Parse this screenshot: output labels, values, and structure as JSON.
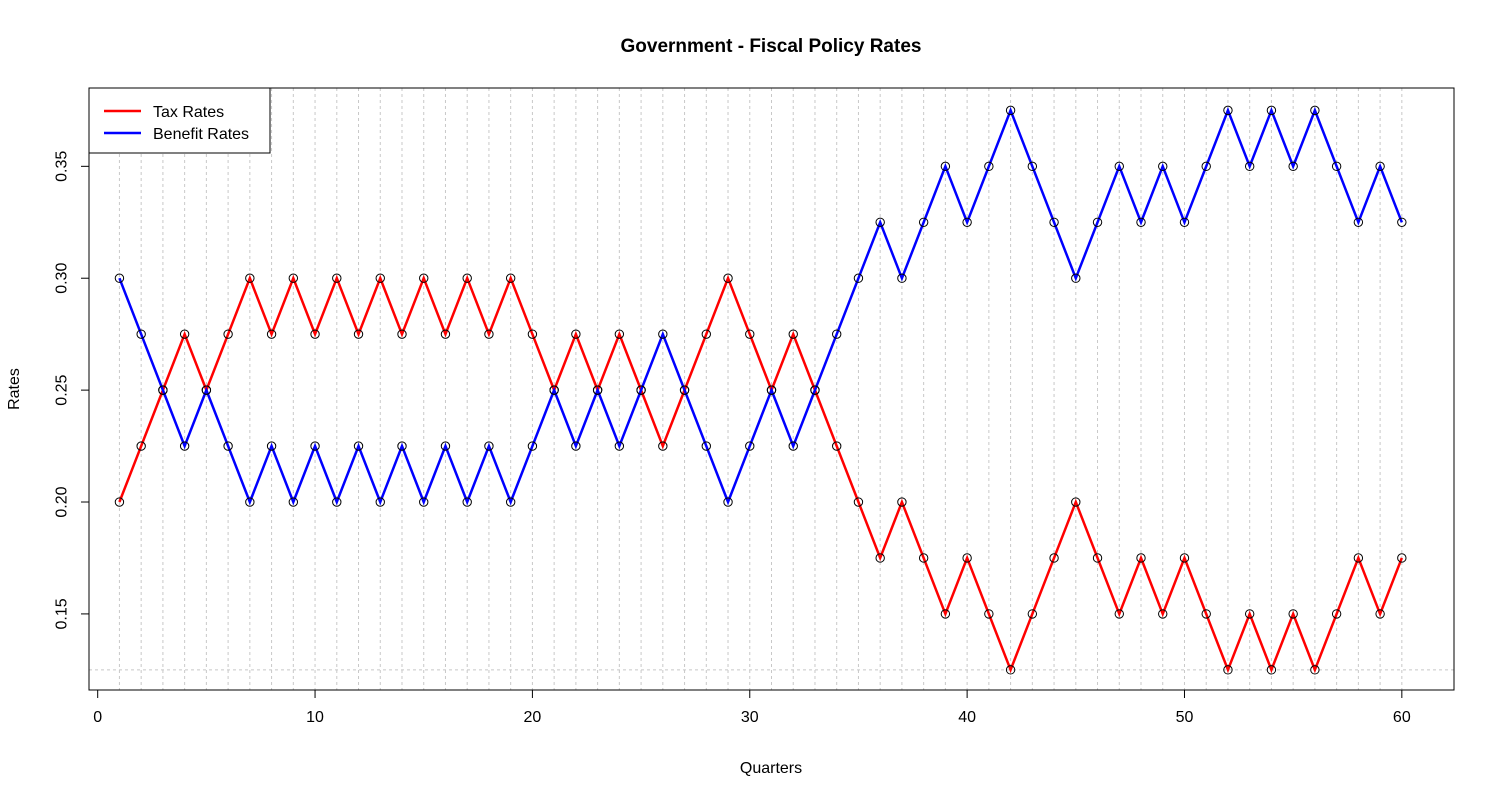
{
  "chart_data": {
    "type": "line",
    "title": "Government - Fiscal Policy Rates",
    "xlabel": "Quarters",
    "ylabel": "Rates",
    "xlim": [
      -0.4,
      62.4
    ],
    "ylim": [
      0.116,
      0.385
    ],
    "x_ticks": [
      0,
      10,
      20,
      30,
      40,
      50,
      60
    ],
    "y_ticks": [
      0.15,
      0.2,
      0.25,
      0.3,
      0.35
    ],
    "y_tick_labels": [
      "0.15",
      "0.20",
      "0.25",
      "0.30",
      "0.35"
    ],
    "grid": {
      "vertical_at_each_quarter": true,
      "horizontal_at": [
        0.125
      ],
      "style": "dotted",
      "color": "#c8c8c8"
    },
    "legend_position": "top-left",
    "marker": "open-circle",
    "x": [
      1,
      2,
      3,
      4,
      5,
      6,
      7,
      8,
      9,
      10,
      11,
      12,
      13,
      14,
      15,
      16,
      17,
      18,
      19,
      20,
      21,
      22,
      23,
      24,
      25,
      26,
      27,
      28,
      29,
      30,
      31,
      32,
      33,
      34,
      35,
      36,
      37,
      38,
      39,
      40,
      41,
      42,
      43,
      44,
      45,
      46,
      47,
      48,
      49,
      50,
      51,
      52,
      53,
      54,
      55,
      56,
      57,
      58,
      59,
      60
    ],
    "series": [
      {
        "name": "Tax Rates",
        "color": "#ff0000",
        "values": [
          0.2,
          0.225,
          0.25,
          0.275,
          0.25,
          0.275,
          0.3,
          0.275,
          0.3,
          0.275,
          0.3,
          0.275,
          0.3,
          0.275,
          0.3,
          0.275,
          0.3,
          0.275,
          0.3,
          0.275,
          0.25,
          0.275,
          0.25,
          0.275,
          0.25,
          0.225,
          0.25,
          0.275,
          0.3,
          0.275,
          0.25,
          0.275,
          0.25,
          0.225,
          0.2,
          0.175,
          0.2,
          0.175,
          0.15,
          0.175,
          0.15,
          0.125,
          0.15,
          0.175,
          0.2,
          0.175,
          0.15,
          0.175,
          0.15,
          0.175,
          0.15,
          0.125,
          0.15,
          0.125,
          0.15,
          0.125,
          0.15,
          0.175,
          0.15,
          0.175
        ]
      },
      {
        "name": "Benefit Rates",
        "color": "#0000ff",
        "values": [
          0.3,
          0.275,
          0.25,
          0.225,
          0.25,
          0.225,
          0.2,
          0.225,
          0.2,
          0.225,
          0.2,
          0.225,
          0.2,
          0.225,
          0.2,
          0.225,
          0.2,
          0.225,
          0.2,
          0.225,
          0.25,
          0.225,
          0.25,
          0.225,
          0.25,
          0.275,
          0.25,
          0.225,
          0.2,
          0.225,
          0.25,
          0.225,
          0.25,
          0.275,
          0.3,
          0.325,
          0.3,
          0.325,
          0.35,
          0.325,
          0.35,
          0.375,
          0.35,
          0.325,
          0.3,
          0.325,
          0.35,
          0.325,
          0.35,
          0.325,
          0.35,
          0.375,
          0.35,
          0.375,
          0.35,
          0.375,
          0.35,
          0.325,
          0.35,
          0.325
        ]
      }
    ]
  }
}
